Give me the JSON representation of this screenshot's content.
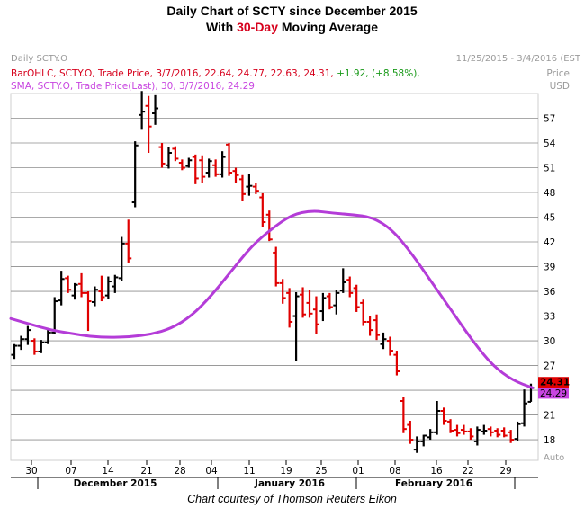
{
  "title_line1": "Daily Chart of SCTY since December 2015",
  "title_line2_pre": "With ",
  "title_line2_accent": "30-Day",
  "title_line2_post": " Moving Average",
  "panel_name": "Daily SCTY.O",
  "date_range": "11/25/2015 - 3/4/2016 (EST",
  "legend_ohlc": "BarOHLC, SCTY.O, Trade Price, 3/7/2016, 22.64, 24.77, 22.63, 24.31,",
  "legend_ohlc_change": "+1.92, (+8.58%),",
  "legend_sma": "SMA, SCTY.O, Trade Price(Last), 30, 3/7/2016, 24.29",
  "axis_unit_line1": "Price",
  "axis_unit_line2": "USD",
  "auto_label": "Auto",
  "credit": "Chart courtesy of Thomson Reuters Eikon",
  "colors": {
    "up": "#000000",
    "down": "#e00000",
    "sma": "#b43cd8",
    "last_price_box": "#e00000",
    "sma_box": "#c845e0"
  },
  "chart_data": {
    "type": "bar",
    "subtype": "ohlc",
    "y_ticks": [
      18,
      21,
      24,
      27,
      30,
      33,
      36,
      39,
      42,
      45,
      48,
      51,
      54,
      57
    ],
    "ylim": [
      15.5,
      60
    ],
    "grid": true,
    "x_tick_labels": [
      "30",
      "07",
      "14",
      "21",
      "28",
      "04",
      "11",
      "19",
      "25",
      "01",
      "08",
      "16",
      "22",
      "29"
    ],
    "month_labels": [
      "December 2015",
      "January 2016",
      "February 2016"
    ],
    "last_price_label": "24.31",
    "sma_label": "24.29",
    "bars": [
      {
        "o": 28.3,
        "h": 29.6,
        "l": 27.8,
        "c": 29.4
      },
      {
        "o": 29.4,
        "h": 30.6,
        "l": 28.9,
        "c": 30.2
      },
      {
        "o": 30.2,
        "h": 31.8,
        "l": 29.5,
        "c": 31.3
      },
      {
        "o": 30.0,
        "h": 30.3,
        "l": 28.3,
        "c": 28.7
      },
      {
        "o": 28.7,
        "h": 30.1,
        "l": 28.5,
        "c": 29.8
      },
      {
        "o": 29.8,
        "h": 31.4,
        "l": 29.6,
        "c": 31.0
      },
      {
        "o": 31.0,
        "h": 35.3,
        "l": 30.8,
        "c": 34.8
      },
      {
        "o": 34.9,
        "h": 38.5,
        "l": 34.3,
        "c": 37.5
      },
      {
        "o": 37.6,
        "h": 37.9,
        "l": 35.8,
        "c": 36.2
      },
      {
        "o": 35.5,
        "h": 37.0,
        "l": 35.0,
        "c": 36.8
      },
      {
        "o": 36.9,
        "h": 38.2,
        "l": 35.3,
        "c": 35.8
      },
      {
        "o": 35.8,
        "h": 36.0,
        "l": 31.2,
        "c": 34.8
      },
      {
        "o": 34.7,
        "h": 36.6,
        "l": 34.2,
        "c": 36.2
      },
      {
        "o": 36.0,
        "h": 37.9,
        "l": 34.8,
        "c": 35.3
      },
      {
        "o": 35.5,
        "h": 37.8,
        "l": 35.1,
        "c": 37.2
      },
      {
        "o": 36.6,
        "h": 38.0,
        "l": 35.8,
        "c": 37.7
      },
      {
        "o": 37.6,
        "h": 42.6,
        "l": 37.3,
        "c": 41.8
      },
      {
        "o": 41.8,
        "h": 44.7,
        "l": 39.5,
        "c": 40.0
      },
      {
        "o": 46.8,
        "h": 54.2,
        "l": 46.2,
        "c": 53.7
      },
      {
        "o": 57.4,
        "h": 60.3,
        "l": 55.6,
        "c": 57.8
      },
      {
        "o": 58.5,
        "h": 59.7,
        "l": 52.8,
        "c": 56.0
      },
      {
        "o": 57.6,
        "h": 59.8,
        "l": 56.2,
        "c": 58.2
      },
      {
        "o": 53.5,
        "h": 54.0,
        "l": 51.0,
        "c": 51.5
      },
      {
        "o": 51.3,
        "h": 53.5,
        "l": 50.9,
        "c": 52.8
      },
      {
        "o": 53.3,
        "h": 53.6,
        "l": 51.8,
        "c": 52.1
      },
      {
        "o": 51.6,
        "h": 52.0,
        "l": 50.7,
        "c": 51.0
      },
      {
        "o": 51.2,
        "h": 52.2,
        "l": 51.0,
        "c": 51.9
      },
      {
        "o": 52.3,
        "h": 52.6,
        "l": 49.0,
        "c": 49.7
      },
      {
        "o": 51.9,
        "h": 52.5,
        "l": 49.2,
        "c": 49.9
      },
      {
        "o": 50.4,
        "h": 52.1,
        "l": 49.8,
        "c": 51.8
      },
      {
        "o": 51.3,
        "h": 52.0,
        "l": 49.9,
        "c": 50.2
      },
      {
        "o": 50.2,
        "h": 53.0,
        "l": 49.8,
        "c": 52.3
      },
      {
        "o": 53.8,
        "h": 54.0,
        "l": 50.0,
        "c": 50.4
      },
      {
        "o": 50.6,
        "h": 51.0,
        "l": 49.2,
        "c": 50.1
      },
      {
        "o": 49.6,
        "h": 50.1,
        "l": 47.0,
        "c": 47.8
      },
      {
        "o": 48.7,
        "h": 50.2,
        "l": 47.6,
        "c": 48.8
      },
      {
        "o": 48.7,
        "h": 49.2,
        "l": 47.8,
        "c": 48.2
      },
      {
        "o": 47.4,
        "h": 47.9,
        "l": 43.8,
        "c": 44.4
      },
      {
        "o": 45.3,
        "h": 45.8,
        "l": 42.1,
        "c": 42.3
      },
      {
        "o": 40.7,
        "h": 41.4,
        "l": 36.6,
        "c": 37.0
      },
      {
        "o": 37.0,
        "h": 37.5,
        "l": 34.5,
        "c": 35.2
      },
      {
        "o": 35.8,
        "h": 36.4,
        "l": 31.6,
        "c": 32.3
      },
      {
        "o": 33.0,
        "h": 35.9,
        "l": 27.5,
        "c": 35.4
      },
      {
        "o": 35.6,
        "h": 36.5,
        "l": 32.8,
        "c": 33.2
      },
      {
        "o": 34.6,
        "h": 36.2,
        "l": 32.8,
        "c": 33.3
      },
      {
        "o": 33.8,
        "h": 35.4,
        "l": 30.8,
        "c": 32.0
      },
      {
        "o": 33.6,
        "h": 35.8,
        "l": 32.4,
        "c": 35.2
      },
      {
        "o": 35.4,
        "h": 35.8,
        "l": 33.8,
        "c": 34.1
      },
      {
        "o": 34.3,
        "h": 36.2,
        "l": 33.2,
        "c": 35.8
      },
      {
        "o": 36.1,
        "h": 38.8,
        "l": 35.8,
        "c": 37.1
      },
      {
        "o": 37.4,
        "h": 37.8,
        "l": 35.3,
        "c": 35.8
      },
      {
        "o": 36.4,
        "h": 36.8,
        "l": 33.5,
        "c": 34.1
      },
      {
        "o": 34.6,
        "h": 35.0,
        "l": 31.8,
        "c": 32.3
      },
      {
        "o": 32.3,
        "h": 33.0,
        "l": 30.6,
        "c": 31.3
      },
      {
        "o": 32.5,
        "h": 33.2,
        "l": 30.1,
        "c": 30.7
      },
      {
        "o": 29.6,
        "h": 31.0,
        "l": 29.0,
        "c": 30.2
      },
      {
        "o": 30.0,
        "h": 30.5,
        "l": 28.2,
        "c": 28.8
      },
      {
        "o": 28.3,
        "h": 28.8,
        "l": 25.8,
        "c": 26.3
      },
      {
        "o": 22.7,
        "h": 23.2,
        "l": 18.8,
        "c": 19.3
      },
      {
        "o": 19.8,
        "h": 20.3,
        "l": 17.5,
        "c": 18.0
      },
      {
        "o": 16.8,
        "h": 18.4,
        "l": 16.4,
        "c": 17.8
      },
      {
        "o": 17.8,
        "h": 18.6,
        "l": 17.2,
        "c": 18.5
      },
      {
        "o": 18.3,
        "h": 19.3,
        "l": 18.0,
        "c": 18.9
      },
      {
        "o": 18.9,
        "h": 22.7,
        "l": 18.6,
        "c": 21.5
      },
      {
        "o": 21.5,
        "h": 21.9,
        "l": 19.8,
        "c": 20.3
      },
      {
        "o": 20.2,
        "h": 20.5,
        "l": 18.8,
        "c": 19.1
      },
      {
        "o": 19.2,
        "h": 19.8,
        "l": 18.4,
        "c": 18.8
      },
      {
        "o": 19.2,
        "h": 19.8,
        "l": 18.6,
        "c": 19.0
      },
      {
        "o": 19.0,
        "h": 19.4,
        "l": 18.0,
        "c": 18.4
      },
      {
        "o": 17.8,
        "h": 19.6,
        "l": 17.3,
        "c": 19.2
      },
      {
        "o": 19.0,
        "h": 19.8,
        "l": 18.6,
        "c": 19.1
      },
      {
        "o": 19.3,
        "h": 19.6,
        "l": 18.4,
        "c": 18.9
      },
      {
        "o": 19.1,
        "h": 19.4,
        "l": 18.3,
        "c": 18.6
      },
      {
        "o": 19.1,
        "h": 19.5,
        "l": 18.3,
        "c": 18.5
      },
      {
        "o": 18.9,
        "h": 19.2,
        "l": 17.6,
        "c": 18.0
      },
      {
        "o": 18.1,
        "h": 20.2,
        "l": 17.9,
        "c": 19.9
      },
      {
        "o": 20.0,
        "h": 24.1,
        "l": 19.6,
        "c": 22.4
      },
      {
        "o": 22.6,
        "h": 24.8,
        "l": 22.6,
        "c": 24.3
      }
    ],
    "sma": [
      32.7,
      32.0,
      31.3,
      30.9,
      30.5,
      30.4,
      30.5,
      30.8,
      31.5,
      33.0,
      35.5,
      38.5,
      41.5,
      43.6,
      45.3,
      45.8,
      45.5,
      45.3,
      45.0,
      43.5,
      40.5,
      37.0,
      33.5,
      30.0,
      27.0,
      25.2,
      24.29
    ]
  }
}
